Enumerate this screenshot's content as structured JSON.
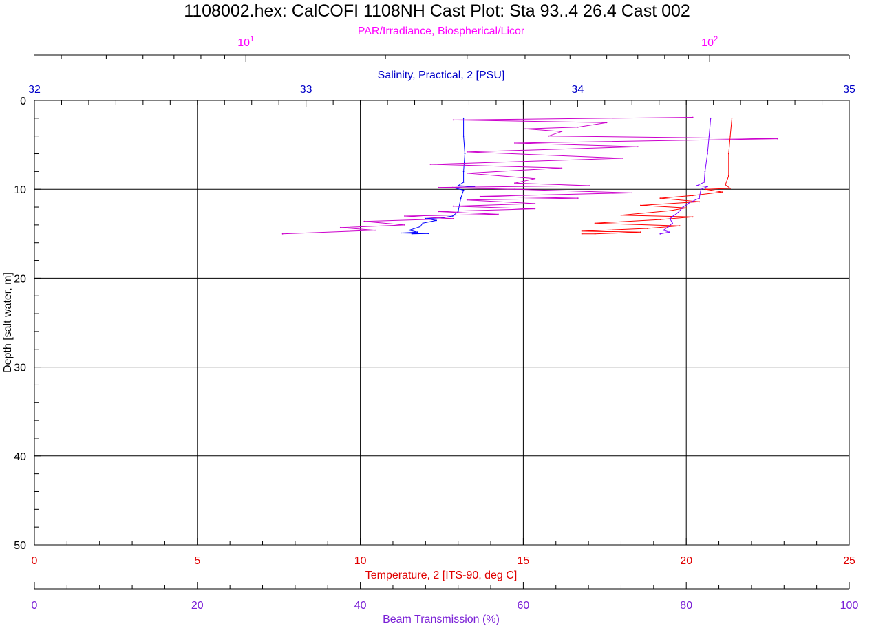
{
  "chart_data": {
    "type": "line",
    "title": "1108002.hex: CalCOFI 1108NH Cast Plot: Sta 93..4 26.4 Cast 002",
    "grid": true,
    "y_axis": {
      "label": "Depth [salt water, m]",
      "range": [
        0,
        50
      ],
      "inverted": true,
      "ticks": [
        "0",
        "10",
        "20",
        "30",
        "40",
        "50"
      ],
      "color": "#000000"
    },
    "x_axes": [
      {
        "id": "par",
        "label": "PAR/Irradiance, Biospherical/Licor",
        "position": "top-outer",
        "scale": "log",
        "range": [
          3.5,
          200
        ],
        "ticks": [
          {
            "value": 10,
            "base": "10",
            "exp": "1"
          },
          {
            "value": 100,
            "base": "10",
            "exp": "2"
          }
        ],
        "color": "#ff00ff"
      },
      {
        "id": "sal",
        "label": "Salinity, Practical, 2 [PSU]",
        "position": "top-inner",
        "scale": "linear",
        "range": [
          32,
          35
        ],
        "ticks": [
          "32",
          "33",
          "34",
          "35"
        ],
        "color": "#0000c8"
      },
      {
        "id": "temp",
        "label": "Temperature, 2 [ITS-90, deg C]",
        "position": "bottom-inner",
        "scale": "linear",
        "range": [
          0,
          25
        ],
        "ticks": [
          "0",
          "5",
          "10",
          "15",
          "20",
          "25"
        ],
        "color": "#e00000"
      },
      {
        "id": "beam",
        "label": "Beam Transmission (%)",
        "position": "bottom-outer",
        "scale": "linear",
        "range": [
          0,
          100
        ],
        "ticks": [
          "0",
          "20",
          "40",
          "60",
          "80",
          "100"
        ],
        "color": "#7a1fd6"
      }
    ],
    "series": [
      {
        "axis": "sal",
        "color": "#0000ff",
        "points": [
          [
            33.58,
            2.0
          ],
          [
            33.58,
            4.0
          ],
          [
            33.585,
            6.0
          ],
          [
            33.58,
            8.0
          ],
          [
            33.58,
            9.2
          ],
          [
            33.56,
            9.6
          ],
          [
            33.62,
            9.7
          ],
          [
            33.54,
            9.8
          ],
          [
            33.58,
            10.1
          ],
          [
            33.57,
            11.0
          ],
          [
            33.56,
            12.5
          ],
          [
            33.54,
            13.0
          ],
          [
            33.5,
            13.2
          ],
          [
            33.44,
            13.3
          ],
          [
            33.48,
            13.5
          ],
          [
            33.43,
            13.8
          ],
          [
            33.42,
            14.2
          ],
          [
            33.38,
            14.6
          ],
          [
            33.41,
            14.8
          ],
          [
            33.35,
            14.9
          ],
          [
            33.45,
            14.95
          ],
          [
            33.39,
            15.0
          ]
        ]
      },
      {
        "axis": "par",
        "color": "#cc00cc",
        "points": [
          [
            92,
            1.9
          ],
          [
            28,
            2.2
          ],
          [
            60,
            2.5
          ],
          [
            52,
            3.0
          ],
          [
            40,
            3.2
          ],
          [
            48,
            3.5
          ],
          [
            45,
            4.0
          ],
          [
            140,
            4.3
          ],
          [
            38,
            4.8
          ],
          [
            70,
            5.2
          ],
          [
            30,
            5.8
          ],
          [
            65,
            6.5
          ],
          [
            25,
            7.2
          ],
          [
            48,
            7.6
          ],
          [
            30,
            8.2
          ],
          [
            42,
            8.8
          ],
          [
            38,
            9.3
          ],
          [
            55,
            9.6
          ],
          [
            26,
            9.8
          ],
          [
            38,
            10.0
          ],
          [
            68,
            10.4
          ],
          [
            32,
            10.8
          ],
          [
            52,
            11.0
          ],
          [
            30,
            11.2
          ],
          [
            42,
            11.6
          ],
          [
            28,
            11.9
          ],
          [
            42,
            12.2
          ],
          [
            26,
            12.5
          ],
          [
            35,
            12.8
          ],
          [
            22,
            13.0
          ],
          [
            28,
            13.3
          ],
          [
            18,
            13.6
          ],
          [
            22,
            14.0
          ],
          [
            16,
            14.3
          ],
          [
            19,
            14.6
          ],
          [
            12,
            15.0
          ]
        ]
      },
      {
        "axis": "temp",
        "color": "#ff0000",
        "points": [
          [
            21.4,
            2.0
          ],
          [
            21.35,
            4.0
          ],
          [
            21.3,
            6.0
          ],
          [
            21.3,
            8.5
          ],
          [
            21.2,
            9.5
          ],
          [
            21.35,
            9.9
          ],
          [
            20.6,
            10.0
          ],
          [
            21.1,
            10.3
          ],
          [
            20.2,
            10.7
          ],
          [
            19.2,
            11.0
          ],
          [
            20.4,
            11.4
          ],
          [
            18.6,
            11.8
          ],
          [
            20.0,
            12.1
          ],
          [
            19.5,
            12.4
          ],
          [
            18.0,
            12.9
          ],
          [
            20.2,
            13.1
          ],
          [
            19.2,
            13.4
          ],
          [
            17.2,
            13.8
          ],
          [
            19.8,
            14.1
          ],
          [
            18.8,
            14.4
          ],
          [
            16.8,
            14.7
          ],
          [
            18.6,
            14.8
          ],
          [
            17.2,
            15.0
          ],
          [
            16.8,
            15.0
          ]
        ]
      },
      {
        "axis": "beam",
        "color": "#8000ff",
        "points": [
          [
            83.0,
            2.0
          ],
          [
            82.8,
            4.0
          ],
          [
            82.6,
            6.0
          ],
          [
            82.3,
            8.0
          ],
          [
            82.2,
            9.2
          ],
          [
            81.3,
            9.6
          ],
          [
            82.6,
            9.7
          ],
          [
            81.8,
            10.0
          ],
          [
            81.6,
            11.0
          ],
          [
            80.4,
            11.5
          ],
          [
            79.6,
            12.0
          ],
          [
            79.0,
            12.6
          ],
          [
            78.4,
            13.0
          ],
          [
            78.0,
            13.3
          ],
          [
            78.3,
            13.8
          ],
          [
            77.8,
            14.2
          ],
          [
            77.2,
            14.6
          ],
          [
            77.9,
            14.8
          ],
          [
            76.8,
            15.0
          ]
        ]
      }
    ]
  }
}
